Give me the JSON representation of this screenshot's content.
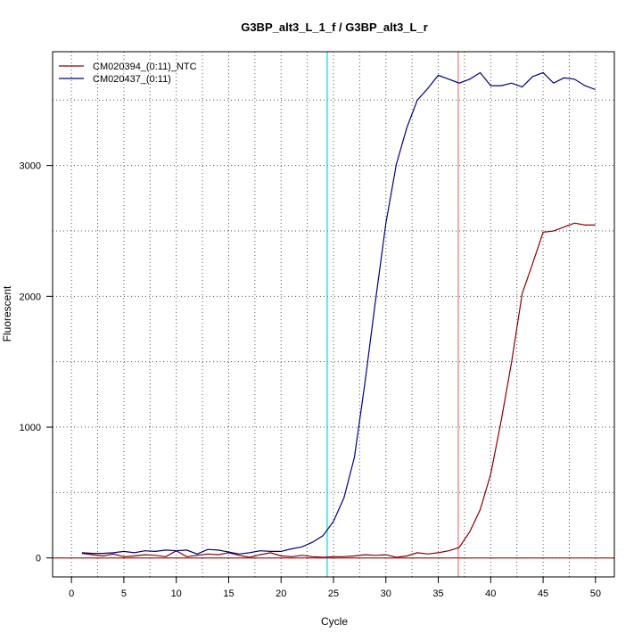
{
  "chart_data": {
    "type": "line",
    "title": "G3BP_alt3_L_1_f / G3BP_alt3_L_r",
    "xlabel": "Cycle",
    "ylabel": "Fluorescent",
    "xlim": [
      -1.8,
      51.8
    ],
    "ylim": [
      -145,
      3870
    ],
    "x_ticks": [
      "0",
      "5",
      "10",
      "15",
      "20",
      "25",
      "30",
      "35",
      "40",
      "45",
      "50"
    ],
    "y_ticks": [
      "0",
      "1000",
      "2000",
      "3000"
    ],
    "grid": "dotted",
    "legend_position": "top-left",
    "threshold": 0,
    "vertical_markers": [
      {
        "x": 24.4,
        "color": "#00e5ee"
      },
      {
        "x": 36.9,
        "color": "#f08080"
      }
    ],
    "x": [
      1,
      2,
      3,
      4,
      5,
      6,
      7,
      8,
      9,
      10,
      11,
      12,
      13,
      14,
      15,
      16,
      17,
      18,
      19,
      20,
      21,
      22,
      23,
      24,
      25,
      26,
      27,
      28,
      29,
      30,
      31,
      32,
      33,
      34,
      35,
      36,
      37,
      38,
      39,
      40,
      41,
      42,
      43,
      44,
      45,
      46,
      47,
      48,
      49,
      50
    ],
    "series": [
      {
        "name": "CM020394_(0:11)_NTC",
        "color": "#8b0000",
        "values": [
          35,
          25,
          15,
          30,
          10,
          15,
          25,
          20,
          10,
          55,
          10,
          20,
          30,
          25,
          40,
          20,
          5,
          25,
          40,
          15,
          10,
          20,
          10,
          5,
          10,
          10,
          15,
          25,
          20,
          25,
          5,
          15,
          40,
          30,
          40,
          55,
          80,
          200,
          370,
          640,
          1050,
          1500,
          2020,
          2250,
          2490,
          2500,
          2530,
          2560,
          2545,
          2545
        ]
      },
      {
        "name": "CM020437_(0:11)",
        "color": "#000080",
        "values": [
          40,
          35,
          35,
          40,
          50,
          40,
          55,
          50,
          60,
          55,
          60,
          30,
          65,
          60,
          45,
          30,
          40,
          55,
          50,
          50,
          70,
          85,
          120,
          170,
          280,
          460,
          770,
          1340,
          1960,
          2560,
          3010,
          3290,
          3500,
          3590,
          3690,
          3660,
          3630,
          3660,
          3710,
          3610,
          3610,
          3630,
          3600,
          3680,
          3710,
          3630,
          3670,
          3660,
          3610,
          3580
        ]
      }
    ]
  }
}
